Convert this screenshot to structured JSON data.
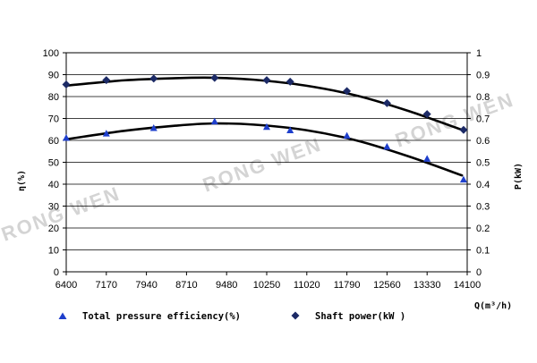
{
  "chart_data": {
    "type": "scatter",
    "x": [
      6400,
      7170,
      8080,
      9250,
      10250,
      10700,
      11790,
      12560,
      13330,
      14030
    ],
    "x_ticks": [
      "6400",
      "7170",
      "7940",
      "8710",
      "9480",
      "10250",
      "11020",
      "11790",
      "12560",
      "13330",
      "14100"
    ],
    "xlim": [
      6400,
      14100
    ],
    "xlabel": "Q(m³/h)",
    "y_left": {
      "label": "η(%)",
      "lim": [
        0,
        100
      ],
      "ticks": [
        "0",
        "10",
        "20",
        "30",
        "40",
        "50",
        "60",
        "70",
        "80",
        "90",
        "100"
      ]
    },
    "y_right": {
      "label": "P(kW)",
      "lim": [
        0,
        1
      ],
      "ticks": [
        "0",
        "0.1",
        "0.2",
        "0.3",
        "0.4",
        "0.5",
        "0.6",
        "0.7",
        "0.8",
        "0.9",
        "1"
      ]
    },
    "grid": "horizontal",
    "legend": "bottom",
    "series": [
      {
        "name": "Total pressure efficiency(%)",
        "axis": "left",
        "marker": "triangle",
        "color": "#1e3fcc",
        "x": [
          6400,
          7170,
          8080,
          9250,
          10250,
          10700,
          11790,
          12560,
          13330,
          14030
        ],
        "values": [
          61,
          63,
          65.5,
          68.5,
          66,
          64.5,
          62,
          57,
          51.5,
          42
        ],
        "fit": [
          [
            6400,
            60.5
          ],
          [
            7500,
            64.3
          ],
          [
            8500,
            66.7
          ],
          [
            9200,
            67.7
          ],
          [
            10000,
            67.2
          ],
          [
            11000,
            64.7
          ],
          [
            12000,
            59.8
          ],
          [
            13000,
            52.5
          ],
          [
            14000,
            44
          ]
        ]
      },
      {
        "name": "Shaft power(kW )",
        "axis": "right",
        "marker": "diamond",
        "color": "#1c2a66",
        "x": [
          6400,
          7170,
          8080,
          9250,
          10250,
          10700,
          11790,
          12560,
          13330,
          14030
        ],
        "values": [
          0.855,
          0.875,
          0.882,
          0.885,
          0.875,
          0.868,
          0.825,
          0.77,
          0.72,
          0.648
        ],
        "fit": [
          [
            6400,
            0.85
          ],
          [
            7500,
            0.874
          ],
          [
            8500,
            0.884
          ],
          [
            9200,
            0.886
          ],
          [
            10000,
            0.877
          ],
          [
            11000,
            0.85
          ],
          [
            12000,
            0.803
          ],
          [
            13000,
            0.732
          ],
          [
            14000,
            0.648
          ]
        ]
      }
    ],
    "watermarks": [
      "RONG WEN",
      "RONG WEN",
      "RONG WEN"
    ]
  }
}
